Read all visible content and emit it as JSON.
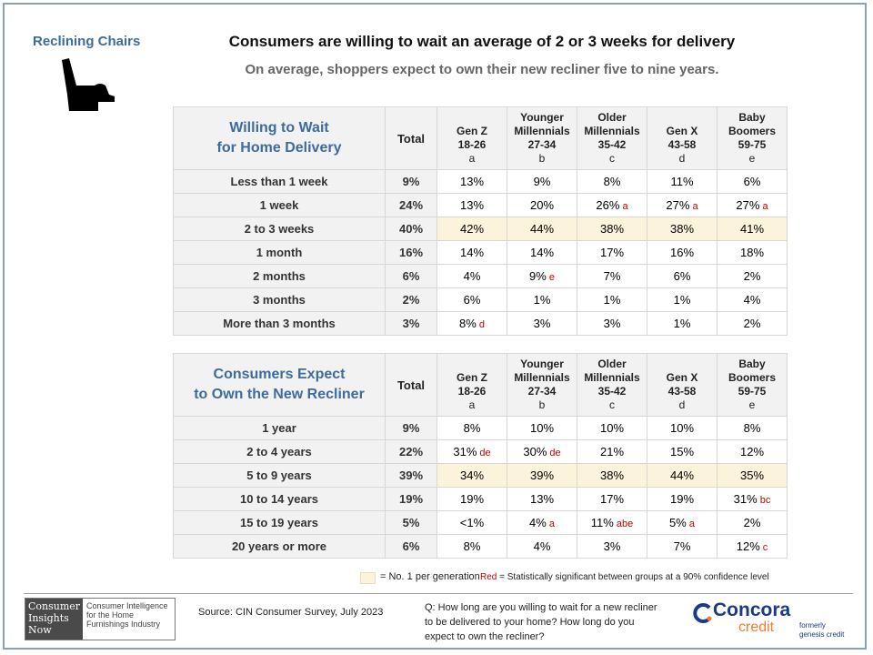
{
  "header": {
    "section": "Reclining Chairs",
    "title": "Consumers are willing to wait an average of 2 or 3 weeks for delivery",
    "subtitle": "On average, shoppers expect to own their new recliner five to nine years."
  },
  "columns": [
    {
      "l1": "",
      "l2": "Gen Z",
      "l3": "18-26",
      "l4": "a"
    },
    {
      "l1": "Younger",
      "l2": "Millennials",
      "l3": "27-34",
      "l4": "b"
    },
    {
      "l1": "Older",
      "l2": "Millennials",
      "l3": "35-42",
      "l4": "c"
    },
    {
      "l1": "",
      "l2": "Gen X",
      "l3": "43-58",
      "l4": "d"
    },
    {
      "l1": "Baby",
      "l2": "Boomers",
      "l3": "59-75",
      "l4": "e"
    }
  ],
  "total_label": "Total",
  "table1": {
    "title1": "Willing to Wait",
    "title2": "for Home Delivery",
    "rows": [
      {
        "label": "Less than 1 week",
        "total": "9%",
        "cells": [
          {
            "v": "13%",
            "s": ""
          },
          {
            "v": "9%",
            "s": ""
          },
          {
            "v": "8%",
            "s": ""
          },
          {
            "v": "11%",
            "s": ""
          },
          {
            "v": "6%",
            "s": ""
          }
        ]
      },
      {
        "label": "1 week",
        "total": "24%",
        "cells": [
          {
            "v": "13%",
            "s": ""
          },
          {
            "v": "20%",
            "s": ""
          },
          {
            "v": "26%",
            "s": "a"
          },
          {
            "v": "27%",
            "s": "a"
          },
          {
            "v": "27%",
            "s": "a"
          }
        ]
      },
      {
        "label": "2 to 3 weeks",
        "total": "40%",
        "highlight": true,
        "cells": [
          {
            "v": "42%",
            "s": ""
          },
          {
            "v": "44%",
            "s": ""
          },
          {
            "v": "38%",
            "s": ""
          },
          {
            "v": "38%",
            "s": ""
          },
          {
            "v": "41%",
            "s": ""
          }
        ]
      },
      {
        "label": "1 month",
        "total": "16%",
        "cells": [
          {
            "v": "14%",
            "s": ""
          },
          {
            "v": "14%",
            "s": ""
          },
          {
            "v": "17%",
            "s": ""
          },
          {
            "v": "16%",
            "s": ""
          },
          {
            "v": "18%",
            "s": ""
          }
        ]
      },
      {
        "label": "2 months",
        "total": "6%",
        "cells": [
          {
            "v": "4%",
            "s": ""
          },
          {
            "v": "9%",
            "s": "e"
          },
          {
            "v": "7%",
            "s": ""
          },
          {
            "v": "6%",
            "s": ""
          },
          {
            "v": "2%",
            "s": ""
          }
        ]
      },
      {
        "label": "3 months",
        "total": "2%",
        "cells": [
          {
            "v": "6%",
            "s": ""
          },
          {
            "v": "1%",
            "s": ""
          },
          {
            "v": "1%",
            "s": ""
          },
          {
            "v": "1%",
            "s": ""
          },
          {
            "v": "4%",
            "s": ""
          }
        ]
      },
      {
        "label": "More than 3 months",
        "total": "3%",
        "cells": [
          {
            "v": "8%",
            "s": "d"
          },
          {
            "v": "3%",
            "s": ""
          },
          {
            "v": "3%",
            "s": ""
          },
          {
            "v": "1%",
            "s": ""
          },
          {
            "v": "2%",
            "s": ""
          }
        ]
      }
    ]
  },
  "table2": {
    "title1": "Consumers Expect",
    "title2": "to Own the New Recliner",
    "rows": [
      {
        "label": "1 year",
        "total": "9%",
        "cells": [
          {
            "v": "8%",
            "s": ""
          },
          {
            "v": "10%",
            "s": ""
          },
          {
            "v": "10%",
            "s": ""
          },
          {
            "v": "10%",
            "s": ""
          },
          {
            "v": "8%",
            "s": ""
          }
        ]
      },
      {
        "label": "2 to 4 years",
        "total": "22%",
        "cells": [
          {
            "v": "31%",
            "s": "de"
          },
          {
            "v": "30%",
            "s": "de"
          },
          {
            "v": "21%",
            "s": ""
          },
          {
            "v": "15%",
            "s": ""
          },
          {
            "v": "12%",
            "s": ""
          }
        ]
      },
      {
        "label": "5 to 9 years",
        "total": "39%",
        "highlight": true,
        "cells": [
          {
            "v": "34%",
            "s": ""
          },
          {
            "v": "39%",
            "s": ""
          },
          {
            "v": "38%",
            "s": ""
          },
          {
            "v": "44%",
            "s": ""
          },
          {
            "v": "35%",
            "s": ""
          }
        ]
      },
      {
        "label": "10 to 14 years",
        "total": "19%",
        "cells": [
          {
            "v": "19%",
            "s": ""
          },
          {
            "v": "13%",
            "s": ""
          },
          {
            "v": "17%",
            "s": ""
          },
          {
            "v": "19%",
            "s": ""
          },
          {
            "v": "31%",
            "s": "bc"
          }
        ]
      },
      {
        "label": "15 to 19 years",
        "total": "5%",
        "cells": [
          {
            "v": "<1%",
            "s": ""
          },
          {
            "v": "4%",
            "s": "a"
          },
          {
            "v": "11%",
            "s": "abe"
          },
          {
            "v": "5%",
            "s": "a"
          },
          {
            "v": "2%",
            "s": ""
          }
        ]
      },
      {
        "label": "20 years or more",
        "total": "6%",
        "cells": [
          {
            "v": "8%",
            "s": ""
          },
          {
            "v": "4%",
            "s": ""
          },
          {
            "v": "3%",
            "s": ""
          },
          {
            "v": "7%",
            "s": ""
          },
          {
            "v": "12%",
            "s": "c"
          }
        ]
      }
    ]
  },
  "legend": {
    "highlight_label": "= No. 1 per generation",
    "red_word": "Red",
    "red_text": " = Statistically significant between groups at a 90% confidence level",
    "highlight_color": "#fbf3da",
    "sig_color": "#c00000"
  },
  "footer": {
    "cin_logo": [
      "Consumer",
      "Insights",
      "Now"
    ],
    "cin_tagline": "Consumer Intelligence for the Home Furnishings Industry",
    "source": "Source: CIN Consumer Survey, July 2023",
    "question": "Q: How long are you willing to wait for a new recliner to be delivered to your home? How long do you expect to own the recliner?",
    "concora": "Concora",
    "credit": "credit",
    "formerly": "formerly genesis credit"
  }
}
